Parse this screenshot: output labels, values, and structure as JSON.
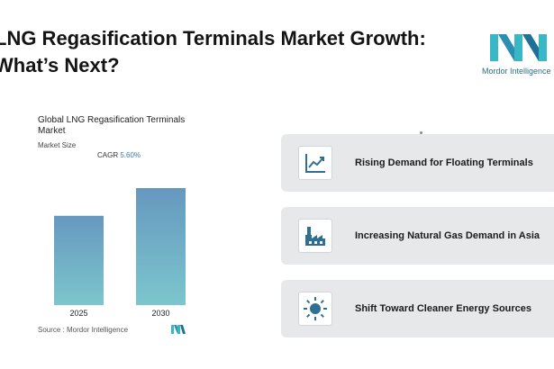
{
  "header": {
    "title_line1": "LNG Regasification Terminals Market Growth:",
    "title_line2": "What’s Next?"
  },
  "logo": {
    "text": "Mordor Intelligence"
  },
  "chart_data": {
    "type": "bar",
    "title": "Global LNG Regasification Terminals Market",
    "subtitle": "Market Size",
    "cagr_label": "CAGR",
    "cagr_value": "5.60%",
    "categories": [
      "2025",
      "2030"
    ],
    "values": [
      1.0,
      1.31
    ],
    "ylim": [
      0,
      1.31
    ],
    "grid": false,
    "colors": {
      "bar_top": "#6698bf",
      "bar_bottom": "#7cc6cd"
    }
  },
  "source": {
    "text": "Source :  Mordor Intelligence"
  },
  "drivers": [
    {
      "label": "Rising Demand for Floating Terminals",
      "icon": "line-chart-icon"
    },
    {
      "label": "Increasing Natural Gas Demand in Asia",
      "icon": "factory-icon"
    },
    {
      "label": "Shift Toward Cleaner Energy Sources",
      "icon": "sun-icon"
    }
  ],
  "colors": {
    "accent": "#3a7dab",
    "card_bg": "#e6e8ea",
    "icon_color": "#2f6f94"
  }
}
